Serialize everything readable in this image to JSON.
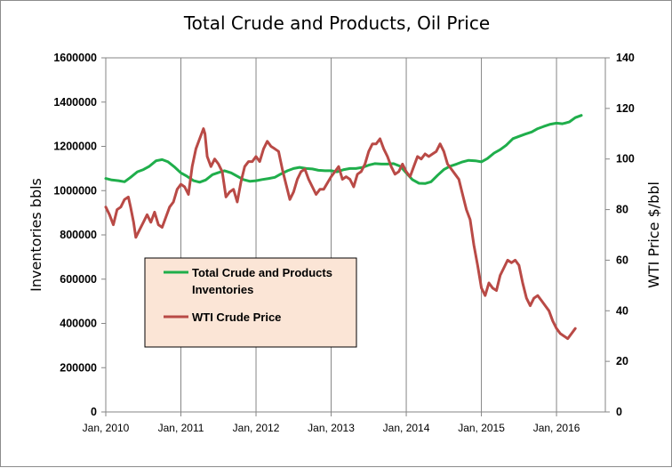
{
  "chart_data": {
    "type": "line",
    "title": "Total Crude and Products, Oil Price",
    "ylabel_left": "Inventories bbls",
    "ylabel_right": "WTI Price $/bbl",
    "xlabel": "",
    "x_ticks": [
      "Jan, 2010",
      "Jan, 2011",
      "Jan, 2012",
      "Jan, 2013",
      "Jan, 2014",
      "Jan, 2015",
      "Jan, 2016"
    ],
    "xlim": [
      2010.0,
      2016.65
    ],
    "ylim_left": [
      0,
      1600000
    ],
    "ylim_right": [
      0,
      140
    ],
    "y_ticks_left": [
      "0",
      "200000",
      "400000",
      "600000",
      "800000",
      "1000000",
      "1200000",
      "1400000",
      "1600000"
    ],
    "y_ticks_right": [
      "0",
      "20",
      "40",
      "60",
      "80",
      "100",
      "120",
      "140"
    ],
    "grid": "vertical lines only",
    "legend_position": "center-left",
    "series": [
      {
        "name": "Total Crude and Products Inventories",
        "axis": "left",
        "color": "#1fae4b",
        "points": [
          [
            2010.0,
            1055000
          ],
          [
            2010.08,
            1048000
          ],
          [
            2010.17,
            1045000
          ],
          [
            2010.25,
            1040000
          ],
          [
            2010.33,
            1060000
          ],
          [
            2010.42,
            1085000
          ],
          [
            2010.5,
            1095000
          ],
          [
            2010.58,
            1110000
          ],
          [
            2010.67,
            1135000
          ],
          [
            2010.75,
            1140000
          ],
          [
            2010.83,
            1130000
          ],
          [
            2010.92,
            1105000
          ],
          [
            2011.0,
            1080000
          ],
          [
            2011.08,
            1065000
          ],
          [
            2011.17,
            1045000
          ],
          [
            2011.25,
            1038000
          ],
          [
            2011.33,
            1048000
          ],
          [
            2011.42,
            1072000
          ],
          [
            2011.5,
            1082000
          ],
          [
            2011.58,
            1090000
          ],
          [
            2011.67,
            1080000
          ],
          [
            2011.75,
            1065000
          ],
          [
            2011.83,
            1050000
          ],
          [
            2011.92,
            1042000
          ],
          [
            2012.0,
            1045000
          ],
          [
            2012.08,
            1050000
          ],
          [
            2012.17,
            1055000
          ],
          [
            2012.25,
            1060000
          ],
          [
            2012.33,
            1075000
          ],
          [
            2012.42,
            1090000
          ],
          [
            2012.5,
            1100000
          ],
          [
            2012.58,
            1105000
          ],
          [
            2012.67,
            1100000
          ],
          [
            2012.75,
            1098000
          ],
          [
            2012.83,
            1092000
          ],
          [
            2012.92,
            1090000
          ],
          [
            2013.0,
            1090000
          ],
          [
            2013.08,
            1085000
          ],
          [
            2013.17,
            1095000
          ],
          [
            2013.25,
            1100000
          ],
          [
            2013.33,
            1100000
          ],
          [
            2013.42,
            1105000
          ],
          [
            2013.5,
            1115000
          ],
          [
            2013.58,
            1122000
          ],
          [
            2013.67,
            1120000
          ],
          [
            2013.75,
            1120000
          ],
          [
            2013.83,
            1122000
          ],
          [
            2013.92,
            1110000
          ],
          [
            2014.0,
            1080000
          ],
          [
            2014.08,
            1050000
          ],
          [
            2014.17,
            1033000
          ],
          [
            2014.25,
            1032000
          ],
          [
            2014.33,
            1040000
          ],
          [
            2014.42,
            1070000
          ],
          [
            2014.5,
            1095000
          ],
          [
            2014.58,
            1110000
          ],
          [
            2014.67,
            1120000
          ],
          [
            2014.75,
            1130000
          ],
          [
            2014.83,
            1137000
          ],
          [
            2014.92,
            1135000
          ],
          [
            2015.0,
            1130000
          ],
          [
            2015.08,
            1145000
          ],
          [
            2015.17,
            1170000
          ],
          [
            2015.25,
            1185000
          ],
          [
            2015.33,
            1205000
          ],
          [
            2015.42,
            1235000
          ],
          [
            2015.5,
            1245000
          ],
          [
            2015.58,
            1255000
          ],
          [
            2015.67,
            1265000
          ],
          [
            2015.75,
            1280000
          ],
          [
            2015.83,
            1290000
          ],
          [
            2015.92,
            1300000
          ],
          [
            2016.0,
            1305000
          ],
          [
            2016.08,
            1302000
          ],
          [
            2016.17,
            1310000
          ],
          [
            2016.25,
            1330000
          ],
          [
            2016.33,
            1340000
          ]
        ]
      },
      {
        "name": "WTI Crude Price",
        "axis": "right",
        "color": "#b94a46",
        "points": [
          [
            2010.0,
            81
          ],
          [
            2010.05,
            78
          ],
          [
            2010.1,
            74
          ],
          [
            2010.15,
            80
          ],
          [
            2010.2,
            81
          ],
          [
            2010.25,
            84
          ],
          [
            2010.3,
            85
          ],
          [
            2010.33,
            81
          ],
          [
            2010.37,
            75
          ],
          [
            2010.4,
            69
          ],
          [
            2010.45,
            72
          ],
          [
            2010.5,
            75
          ],
          [
            2010.55,
            78
          ],
          [
            2010.6,
            75
          ],
          [
            2010.65,
            79
          ],
          [
            2010.7,
            74
          ],
          [
            2010.75,
            73
          ],
          [
            2010.8,
            77
          ],
          [
            2010.85,
            81
          ],
          [
            2010.9,
            83
          ],
          [
            2010.95,
            88
          ],
          [
            2011.0,
            90
          ],
          [
            2011.05,
            89
          ],
          [
            2011.1,
            86
          ],
          [
            2011.15,
            97
          ],
          [
            2011.2,
            104
          ],
          [
            2011.25,
            108
          ],
          [
            2011.3,
            112
          ],
          [
            2011.32,
            110
          ],
          [
            2011.35,
            101
          ],
          [
            2011.4,
            97
          ],
          [
            2011.45,
            100
          ],
          [
            2011.5,
            98
          ],
          [
            2011.55,
            95
          ],
          [
            2011.6,
            85
          ],
          [
            2011.65,
            87
          ],
          [
            2011.7,
            88
          ],
          [
            2011.75,
            83
          ],
          [
            2011.8,
            91
          ],
          [
            2011.85,
            97
          ],
          [
            2011.9,
            99
          ],
          [
            2011.95,
            99
          ],
          [
            2012.0,
            101
          ],
          [
            2012.05,
            99
          ],
          [
            2012.1,
            104
          ],
          [
            2012.15,
            107
          ],
          [
            2012.2,
            105
          ],
          [
            2012.25,
            104
          ],
          [
            2012.3,
            103
          ],
          [
            2012.35,
            96
          ],
          [
            2012.4,
            90
          ],
          [
            2012.45,
            84
          ],
          [
            2012.5,
            87
          ],
          [
            2012.55,
            92
          ],
          [
            2012.6,
            95
          ],
          [
            2012.65,
            96
          ],
          [
            2012.7,
            92
          ],
          [
            2012.75,
            89
          ],
          [
            2012.8,
            86
          ],
          [
            2012.85,
            88
          ],
          [
            2012.9,
            88
          ],
          [
            2013.0,
            93
          ],
          [
            2013.05,
            95
          ],
          [
            2013.1,
            97
          ],
          [
            2013.15,
            92
          ],
          [
            2013.2,
            93
          ],
          [
            2013.25,
            92
          ],
          [
            2013.3,
            89
          ],
          [
            2013.35,
            94
          ],
          [
            2013.4,
            95
          ],
          [
            2013.45,
            98
          ],
          [
            2013.5,
            103
          ],
          [
            2013.55,
            106
          ],
          [
            2013.6,
            106
          ],
          [
            2013.65,
            108
          ],
          [
            2013.7,
            104
          ],
          [
            2013.75,
            101
          ],
          [
            2013.8,
            97
          ],
          [
            2013.85,
            94
          ],
          [
            2013.9,
            95
          ],
          [
            2013.95,
            98
          ],
          [
            2014.0,
            95
          ],
          [
            2014.05,
            93
          ],
          [
            2014.1,
            97
          ],
          [
            2014.15,
            101
          ],
          [
            2014.2,
            100
          ],
          [
            2014.25,
            102
          ],
          [
            2014.3,
            101
          ],
          [
            2014.35,
            102
          ],
          [
            2014.4,
            103
          ],
          [
            2014.45,
            106
          ],
          [
            2014.5,
            103
          ],
          [
            2014.55,
            98
          ],
          [
            2014.6,
            96
          ],
          [
            2014.65,
            94
          ],
          [
            2014.7,
            92
          ],
          [
            2014.75,
            86
          ],
          [
            2014.8,
            80
          ],
          [
            2014.85,
            76
          ],
          [
            2014.9,
            66
          ],
          [
            2014.95,
            58
          ],
          [
            2015.0,
            49
          ],
          [
            2015.05,
            46
          ],
          [
            2015.1,
            51
          ],
          [
            2015.15,
            49
          ],
          [
            2015.2,
            48
          ],
          [
            2015.25,
            54
          ],
          [
            2015.3,
            57
          ],
          [
            2015.35,
            60
          ],
          [
            2015.4,
            59
          ],
          [
            2015.45,
            60
          ],
          [
            2015.5,
            58
          ],
          [
            2015.55,
            51
          ],
          [
            2015.6,
            45
          ],
          [
            2015.65,
            42
          ],
          [
            2015.7,
            45
          ],
          [
            2015.75,
            46
          ],
          [
            2015.8,
            44
          ],
          [
            2015.85,
            42
          ],
          [
            2015.9,
            40
          ],
          [
            2015.95,
            36
          ],
          [
            2016.0,
            33
          ],
          [
            2016.05,
            31
          ],
          [
            2016.1,
            30
          ],
          [
            2016.15,
            29
          ],
          [
            2016.2,
            31
          ],
          [
            2016.25,
            33
          ]
        ]
      }
    ]
  }
}
